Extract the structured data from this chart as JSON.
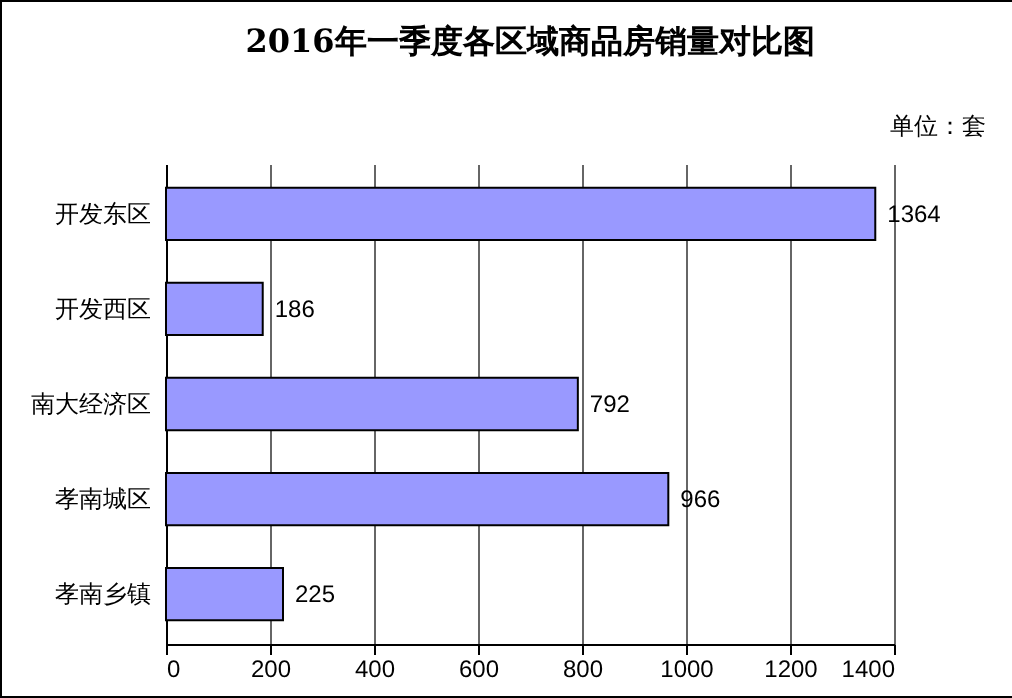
{
  "chart_data": {
    "type": "bar",
    "orientation": "horizontal",
    "title": "2016年一季度各区域商品房销量对比图",
    "annotations": [
      "单位：套"
    ],
    "categories": [
      "开发东区",
      "开发西区",
      "南大经济区",
      "孝南城区",
      "孝南乡镇"
    ],
    "values": [
      1364,
      186,
      792,
      966,
      225
    ],
    "color": "#9999ff",
    "xlim": [
      0,
      1400
    ],
    "xticks": [
      0,
      200,
      400,
      600,
      800,
      1000,
      1200,
      1400
    ],
    "grid": "x",
    "data_labels": true
  }
}
